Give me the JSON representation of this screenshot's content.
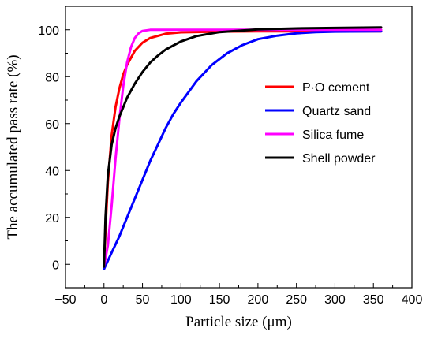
{
  "chart_data": {
    "type": "line",
    "xlabel": "Particle size (μm)",
    "ylabel": "The accumulated pass rate (%)",
    "xlim": [
      -50,
      400
    ],
    "ylim": [
      -10,
      110
    ],
    "xticks": [
      -50,
      0,
      50,
      100,
      150,
      200,
      250,
      300,
      350,
      400
    ],
    "yticks": [
      0,
      20,
      40,
      60,
      80,
      100
    ],
    "legend_position": "right",
    "series": [
      {
        "name": "P·O cement",
        "color": "#ff0000",
        "x": [
          0,
          2,
          5,
          10,
          15,
          20,
          25,
          30,
          40,
          50,
          60,
          80,
          100,
          150,
          200,
          250,
          300,
          360
        ],
        "y": [
          -2,
          15,
          35,
          55,
          67,
          75,
          81,
          85,
          91,
          94.5,
          96.5,
          98.3,
          98.9,
          99.2,
          99.3,
          99.3,
          99.3,
          99.3
        ]
      },
      {
        "name": "Quartz sand",
        "color": "#0000ff",
        "x": [
          0,
          10,
          20,
          30,
          40,
          50,
          60,
          70,
          80,
          90,
          100,
          120,
          140,
          160,
          180,
          200,
          225,
          250,
          275,
          300,
          360
        ],
        "y": [
          -2,
          5,
          12,
          20,
          28,
          36,
          44,
          51,
          58,
          64,
          69,
          78,
          85,
          90,
          93.5,
          96,
          97.5,
          98.5,
          99,
          99.2,
          99.3
        ]
      },
      {
        "name": "Silica fume",
        "color": "#ff00ff",
        "x": [
          0,
          5,
          10,
          15,
          20,
          25,
          30,
          35,
          40,
          45,
          50,
          60,
          80,
          100,
          150,
          200,
          250,
          300,
          360
        ],
        "y": [
          -1,
          8,
          25,
          45,
          62,
          76,
          86,
          92.5,
          96.5,
          98.5,
          99.5,
          100,
          100,
          100,
          100,
          100,
          100,
          100,
          100
        ]
      },
      {
        "name": "Shell powder",
        "color": "#000000",
        "x": [
          0,
          2,
          5,
          10,
          15,
          20,
          25,
          30,
          40,
          50,
          60,
          70,
          80,
          100,
          120,
          150,
          200,
          250,
          300,
          360
        ],
        "y": [
          -1,
          20,
          38,
          51,
          58,
          63,
          67,
          71,
          77,
          82,
          86,
          89,
          91.5,
          95,
          97.3,
          99,
          100.2,
          100.6,
          100.8,
          101
        ]
      }
    ]
  }
}
